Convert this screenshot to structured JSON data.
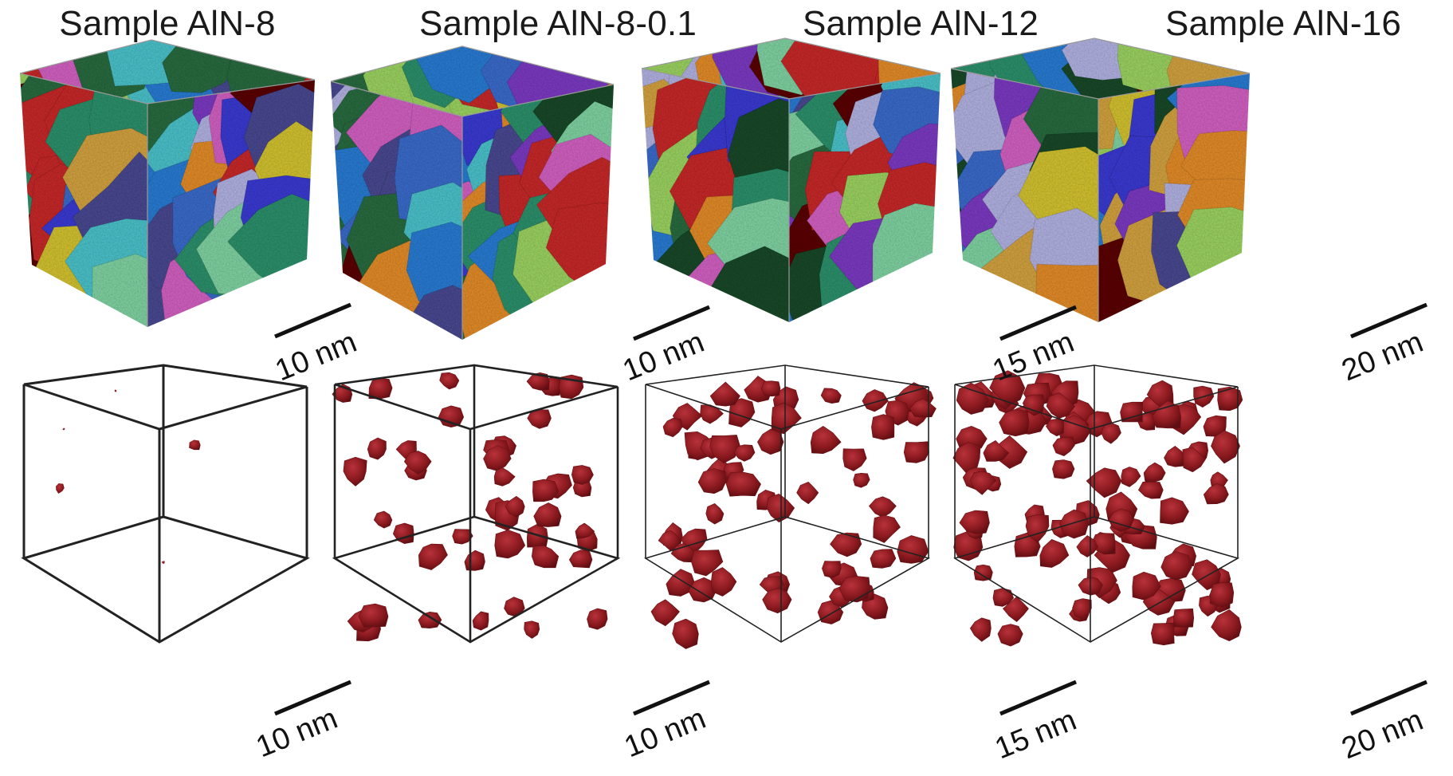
{
  "panels": [
    {
      "title": "Sample AlN-8",
      "scale_top": "10 nm",
      "scale_bottom": "10 nm"
    },
    {
      "title": "Sample AlN-8-0.1",
      "scale_top": "10 nm",
      "scale_bottom": "10 nm"
    },
    {
      "title": "Sample AlN-12",
      "scale_top": "15 nm",
      "scale_bottom": "15 nm"
    },
    {
      "title": "Sample AlN-16",
      "scale_top": "20 nm",
      "scale_bottom": "20 nm"
    }
  ],
  "colors": {
    "grain_palette": [
      "#2f8f6a",
      "#3a3ad0",
      "#c42a2a",
      "#e08a2a",
      "#7fd0a0",
      "#4bc0c8",
      "#9ad060",
      "#7a3ac0",
      "#5a1010",
      "#4a4a90",
      "#d060c0",
      "#2a6a40",
      "#b0b0e0",
      "#2a7ad0",
      "#d0c030",
      "#1a4a2a",
      "#3a6ac8",
      "#d0a040"
    ],
    "precipitate": "#8b1a1f",
    "box_edge": "#222222"
  }
}
